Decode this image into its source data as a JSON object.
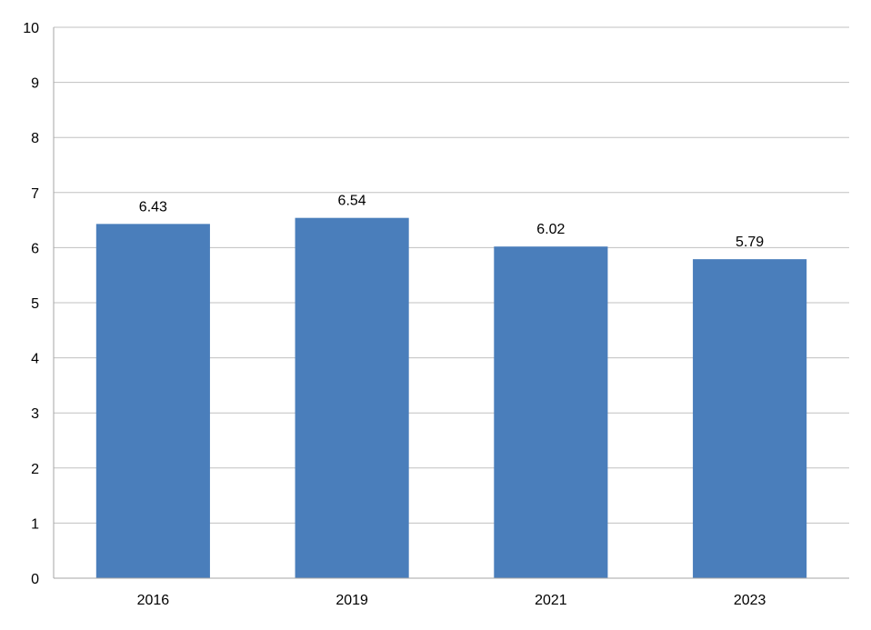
{
  "chart_data": {
    "type": "bar",
    "categories": [
      "2016",
      "2019",
      "2021",
      "2023"
    ],
    "values": [
      6.43,
      6.54,
      6.02,
      5.79
    ],
    "data_labels": [
      "6.43",
      "6.54",
      "6.02",
      "5.79"
    ],
    "ylim": [
      0,
      10
    ],
    "yticks": [
      0,
      1,
      2,
      3,
      4,
      5,
      6,
      7,
      8,
      9,
      10
    ],
    "ytick_labels": [
      "0",
      "1",
      "2",
      "3",
      "4",
      "5",
      "6",
      "7",
      "8",
      "9",
      "10"
    ],
    "grid": true,
    "legend": "none",
    "colors": {
      "bar": "#4a7ebb",
      "grid": "#c0c0c0",
      "axis": "#a6a6a6",
      "text": "#000000"
    }
  }
}
